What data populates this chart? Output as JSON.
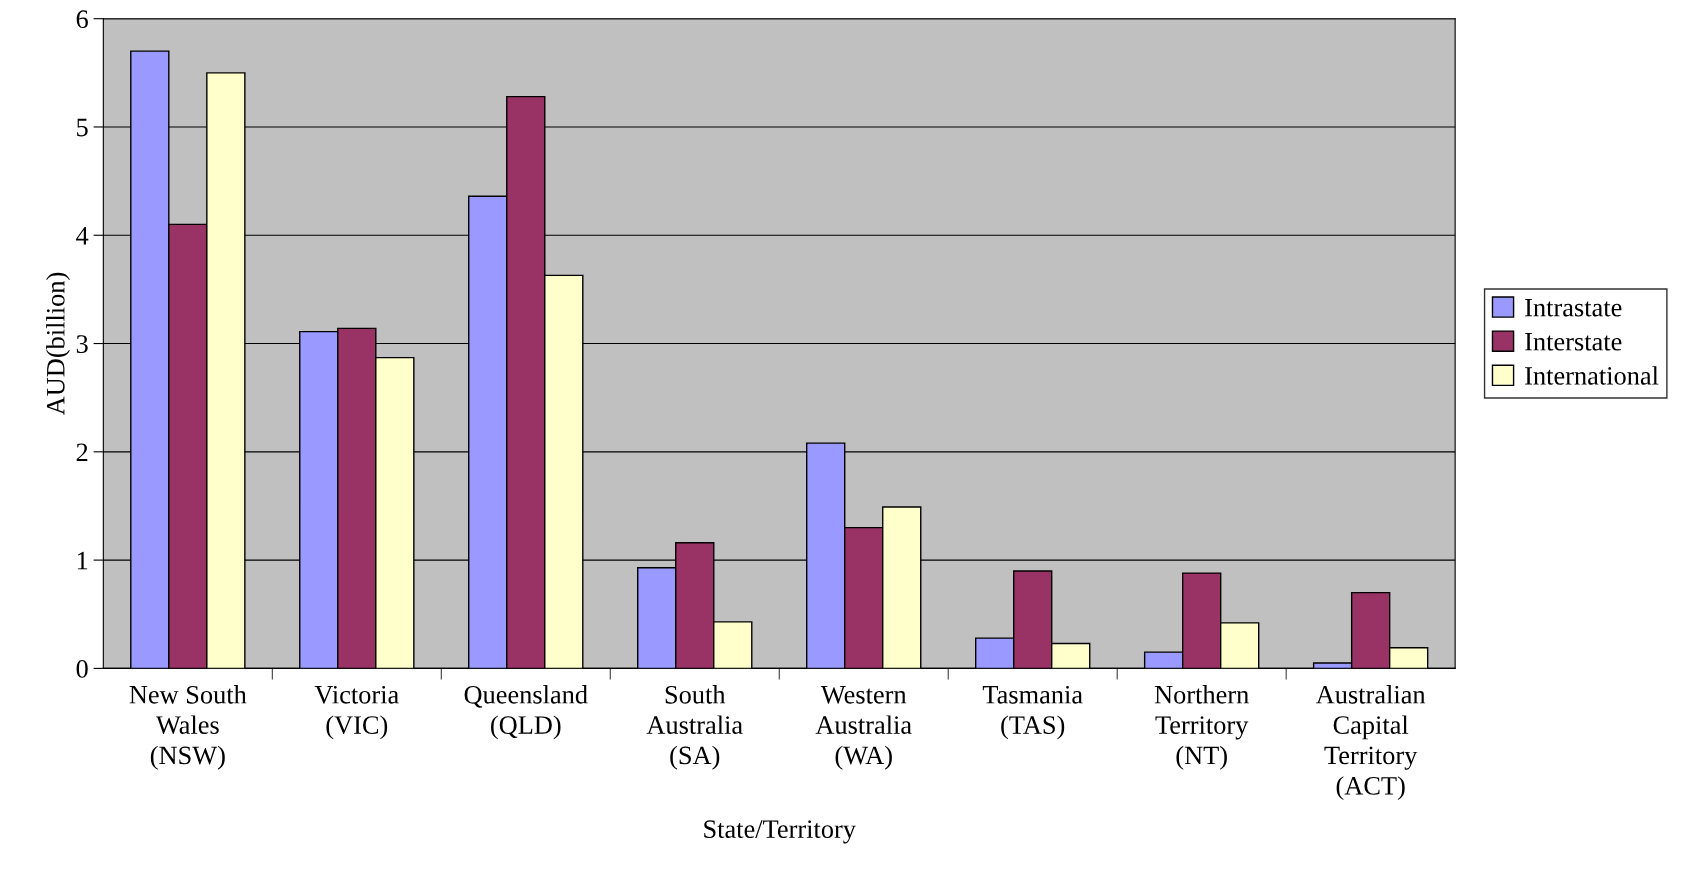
{
  "chart_data": {
    "type": "bar",
    "xlabel": "State/Territory",
    "ylabel": "AUD(billion)",
    "categories": [
      "New South\nWales\n(NSW)",
      "Victoria\n(VIC)",
      "Queensland\n(QLD)",
      "South\nAustralia\n(SA)",
      "Western\nAustralia\n(WA)",
      "Tasmania\n(TAS)",
      "Northern\nTerritory\n(NT)",
      "Australian\nCapital\nTerritory\n(ACT)"
    ],
    "series": [
      {
        "name": "Intrastate",
        "color": "#9999ff",
        "values": [
          5.7,
          3.11,
          4.36,
          0.93,
          2.08,
          0.28,
          0.15,
          0.05
        ]
      },
      {
        "name": "Interstate",
        "color": "#993366",
        "values": [
          4.1,
          3.14,
          5.28,
          1.16,
          1.3,
          0.9,
          0.88,
          0.7
        ]
      },
      {
        "name": "International",
        "color": "#ffffcc",
        "values": [
          5.5,
          2.87,
          3.63,
          0.43,
          1.49,
          0.23,
          0.42,
          0.19
        ]
      }
    ],
    "ylim": [
      0,
      6
    ],
    "yticks": [
      0,
      1,
      2,
      3,
      4,
      5,
      6
    ],
    "grid": "y",
    "legend": "right"
  }
}
